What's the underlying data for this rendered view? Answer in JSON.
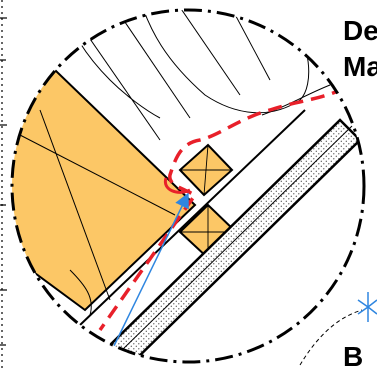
{
  "labels": {
    "corner_text_line1": "De",
    "corner_text_line2": "Ma",
    "corner_text_bottom": "B"
  },
  "colors": {
    "timber": "#FCC766",
    "membrane": "#E8202A",
    "arrow": "#2F86E0",
    "line": "#000000",
    "background": "#FFFFFF",
    "hatch": "#555555"
  }
}
